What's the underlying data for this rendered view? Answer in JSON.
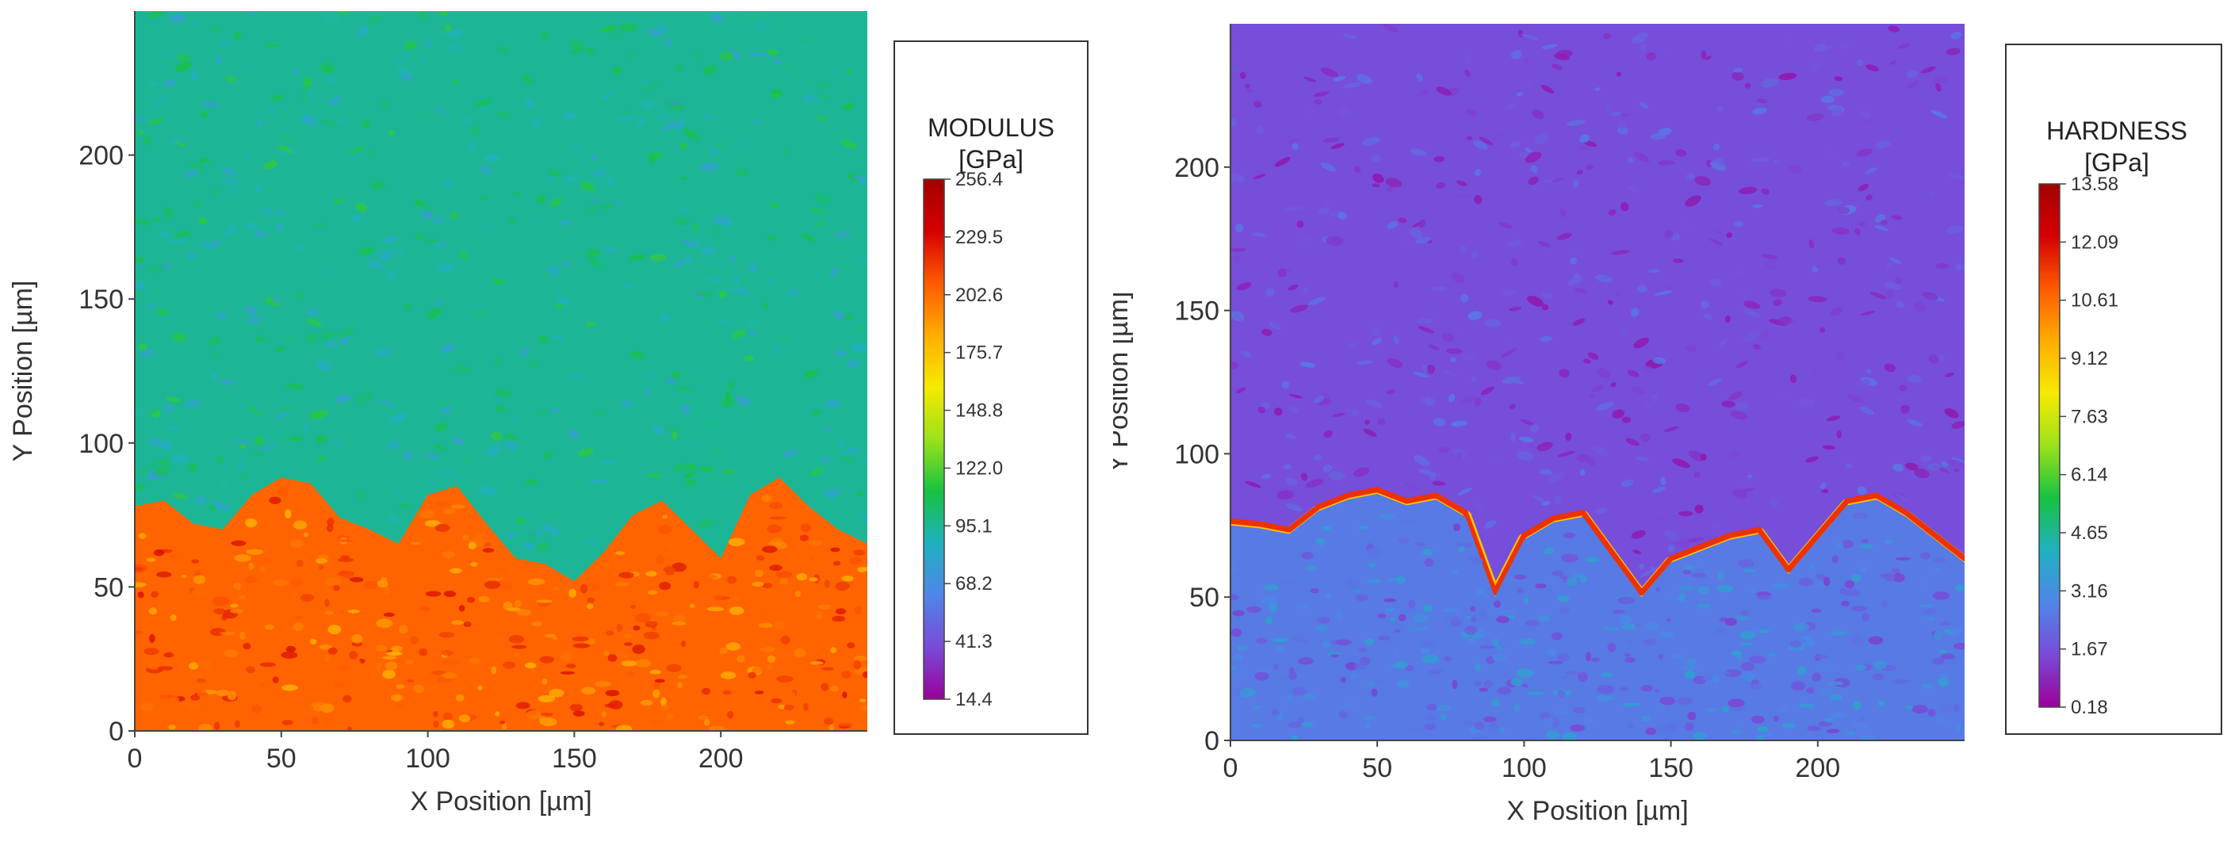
{
  "chart_data": [
    {
      "type": "heatmap",
      "panel": "left",
      "xlabel": "X Position [µm]",
      "ylabel": "Y Position [µm]",
      "xlim": [
        0,
        250
      ],
      "ylim": [
        0,
        250
      ],
      "x_ticks": [
        0,
        50,
        100,
        150,
        200
      ],
      "y_ticks": [
        0,
        50,
        100,
        150,
        200
      ],
      "colorbar": {
        "title": "MODULUS",
        "unit": "[GPa]",
        "ticks": [
          "256.4",
          "229.5",
          "202.6",
          "175.7",
          "148.8",
          "122.0",
          "95.1",
          "68.2",
          "41.3",
          "14.4"
        ],
        "range": [
          14.4,
          256.4
        ],
        "colors": [
          "#9a009a",
          "#7a4ad8",
          "#4f86e8",
          "#1fb0c0",
          "#17c240",
          "#9be21a",
          "#f6ea00",
          "#ffad00",
          "#ff5a00",
          "#d40000",
          "#a30000"
        ]
      },
      "regions": {
        "upper_level": 95,
        "lower_level": 205,
        "boundary_x": [
          0,
          10,
          20,
          30,
          40,
          50,
          60,
          70,
          80,
          90,
          100,
          110,
          120,
          130,
          140,
          150,
          160,
          170,
          180,
          190,
          200,
          210,
          220,
          230,
          240,
          250
        ],
        "boundary_y": [
          78,
          80,
          72,
          70,
          82,
          88,
          86,
          74,
          70,
          65,
          82,
          85,
          72,
          60,
          58,
          52,
          62,
          75,
          80,
          70,
          60,
          82,
          88,
          78,
          70,
          65
        ]
      }
    },
    {
      "type": "heatmap",
      "panel": "right",
      "xlabel": "X Position [µm]",
      "ylabel": "Y Position [µm]",
      "xlim": [
        0,
        250
      ],
      "ylim": [
        0,
        250
      ],
      "x_ticks": [
        0,
        50,
        100,
        150,
        200
      ],
      "y_ticks": [
        0,
        50,
        100,
        150,
        200
      ],
      "colorbar": {
        "title": "HARDNESS",
        "unit": "[GPa]",
        "ticks": [
          "13.58",
          "12.09",
          "10.61",
          "9.12",
          "7.63",
          "6.14",
          "4.65",
          "3.16",
          "1.67",
          "0.18"
        ],
        "range": [
          0.18,
          13.58
        ],
        "colors": [
          "#9a009a",
          "#7a4ad8",
          "#4f86e8",
          "#1fb0c0",
          "#17c240",
          "#9be21a",
          "#f6ea00",
          "#ffad00",
          "#ff5a00",
          "#d40000",
          "#a30000"
        ]
      },
      "regions": {
        "upper_level": 1.6,
        "lower_level": 2.6,
        "band_level": 9.0,
        "boundary_x": [
          0,
          10,
          20,
          30,
          40,
          50,
          60,
          70,
          80,
          90,
          100,
          110,
          120,
          130,
          140,
          150,
          160,
          170,
          180,
          190,
          200,
          210,
          220,
          230,
          240,
          250
        ],
        "boundary_y": [
          75,
          74,
          72,
          80,
          84,
          86,
          82,
          84,
          78,
          50,
          70,
          76,
          78,
          64,
          50,
          62,
          66,
          70,
          72,
          58,
          70,
          82,
          84,
          78,
          70,
          62
        ]
      }
    }
  ]
}
